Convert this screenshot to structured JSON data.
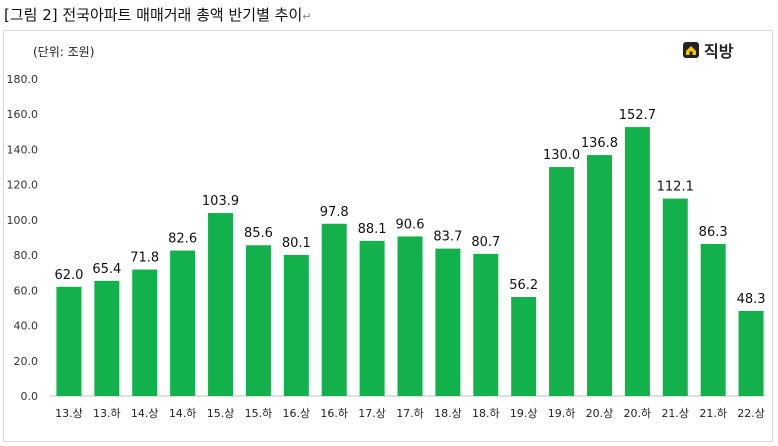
{
  "caption": {
    "text": "[그림 2] 전국아파트 매매거래 총액 반기별 추이",
    "mark": "↵"
  },
  "unit_label": "(단위: 조원)",
  "logo": {
    "text": "직방",
    "icon": "house-logo-icon"
  },
  "colors": {
    "bar": "#12B14B",
    "grid": "#d9d9d9",
    "text": "#222222"
  },
  "chart_data": {
    "type": "bar",
    "title": "",
    "xlabel": "",
    "ylabel": "",
    "ylim": [
      0,
      180
    ],
    "yticks": [
      "0.0",
      "20.0",
      "40.0",
      "60.0",
      "80.0",
      "100.0",
      "120.0",
      "140.0",
      "160.0",
      "180.0"
    ],
    "grid": false,
    "categories": [
      "13.상",
      "13.하",
      "14.상",
      "14.하",
      "15.상",
      "15.하",
      "16.상",
      "16.하",
      "17.상",
      "17.하",
      "18.상",
      "18.하",
      "19.상",
      "19.하",
      "20.상",
      "20.하",
      "21.상",
      "21.하",
      "22.상"
    ],
    "values": [
      62.0,
      65.4,
      71.8,
      82.6,
      103.9,
      85.6,
      80.1,
      97.8,
      88.1,
      90.6,
      83.7,
      80.7,
      56.2,
      130.0,
      136.8,
      152.7,
      112.1,
      86.3,
      48.3
    ],
    "data_labels": [
      "62.0",
      "65.4",
      "71.8",
      "82.6",
      "103.9",
      "85.6",
      "80.1",
      "97.8",
      "88.1",
      "90.6",
      "83.7",
      "80.7",
      "56.2",
      "130.0",
      "136.8",
      "152.7",
      "112.1",
      "86.3",
      "48.3"
    ]
  }
}
